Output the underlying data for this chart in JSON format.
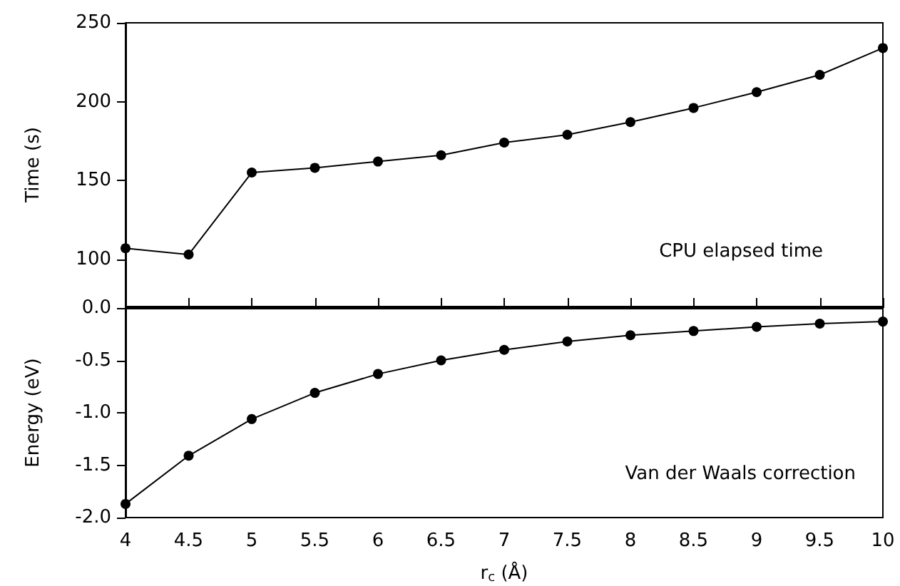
{
  "chart_data": [
    {
      "type": "line",
      "ylabel": "Time (s)",
      "annotations": [
        "CPU elapsed time"
      ],
      "x": [
        4,
        4.5,
        5,
        5.5,
        6,
        6.5,
        7,
        7.5,
        8,
        8.5,
        9,
        9.5,
        10
      ],
      "series": [
        {
          "color": "#000000",
          "values": [
            107,
            103,
            155,
            158,
            162,
            166,
            174,
            179,
            187,
            196,
            206,
            217,
            234
          ]
        }
      ],
      "xlim": [
        4,
        10
      ],
      "xticks": [
        4,
        4.5,
        5,
        5.5,
        6,
        6.5,
        7,
        7.5,
        8,
        8.5,
        9,
        9.5,
        10
      ],
      "ylim": [
        70,
        250
      ],
      "yticks": [
        100,
        150,
        200,
        250
      ],
      "tick_labels": "y",
      "grid": false,
      "marker": "circle",
      "line_style": "solid"
    },
    {
      "type": "line",
      "xlabel": "r$_{c}$ (Å)",
      "ylabel": "Energy (eV)",
      "annotations": [
        "Van der Waals correction"
      ],
      "x": [
        4,
        4.5,
        5,
        5.5,
        6,
        6.5,
        7,
        7.5,
        8,
        8.5,
        9,
        9.5,
        10
      ],
      "series": [
        {
          "color": "#000000",
          "values": [
            -1.87,
            -1.41,
            -1.06,
            -0.81,
            -0.63,
            -0.5,
            -0.4,
            -0.32,
            -0.26,
            -0.22,
            -0.18,
            -0.15,
            -0.13
          ]
        }
      ],
      "xlim": [
        4,
        10
      ],
      "xticks": [
        4,
        4.5,
        5,
        5.5,
        6,
        6.5,
        7,
        7.5,
        8,
        8.5,
        9,
        9.5,
        10
      ],
      "ylim": [
        -2.0,
        0.0
      ],
      "yticks": [
        {
          "value": -2.0,
          "label": "-2.0"
        },
        {
          "value": -1.5,
          "label": "-1.5"
        },
        {
          "value": -1.0,
          "label": "-1.0"
        },
        {
          "value": -0.5,
          "label": "-0.5"
        },
        {
          "value": 0.0,
          "label": "0.0"
        }
      ],
      "grid": false,
      "marker": "circle",
      "line_style": "solid"
    }
  ]
}
